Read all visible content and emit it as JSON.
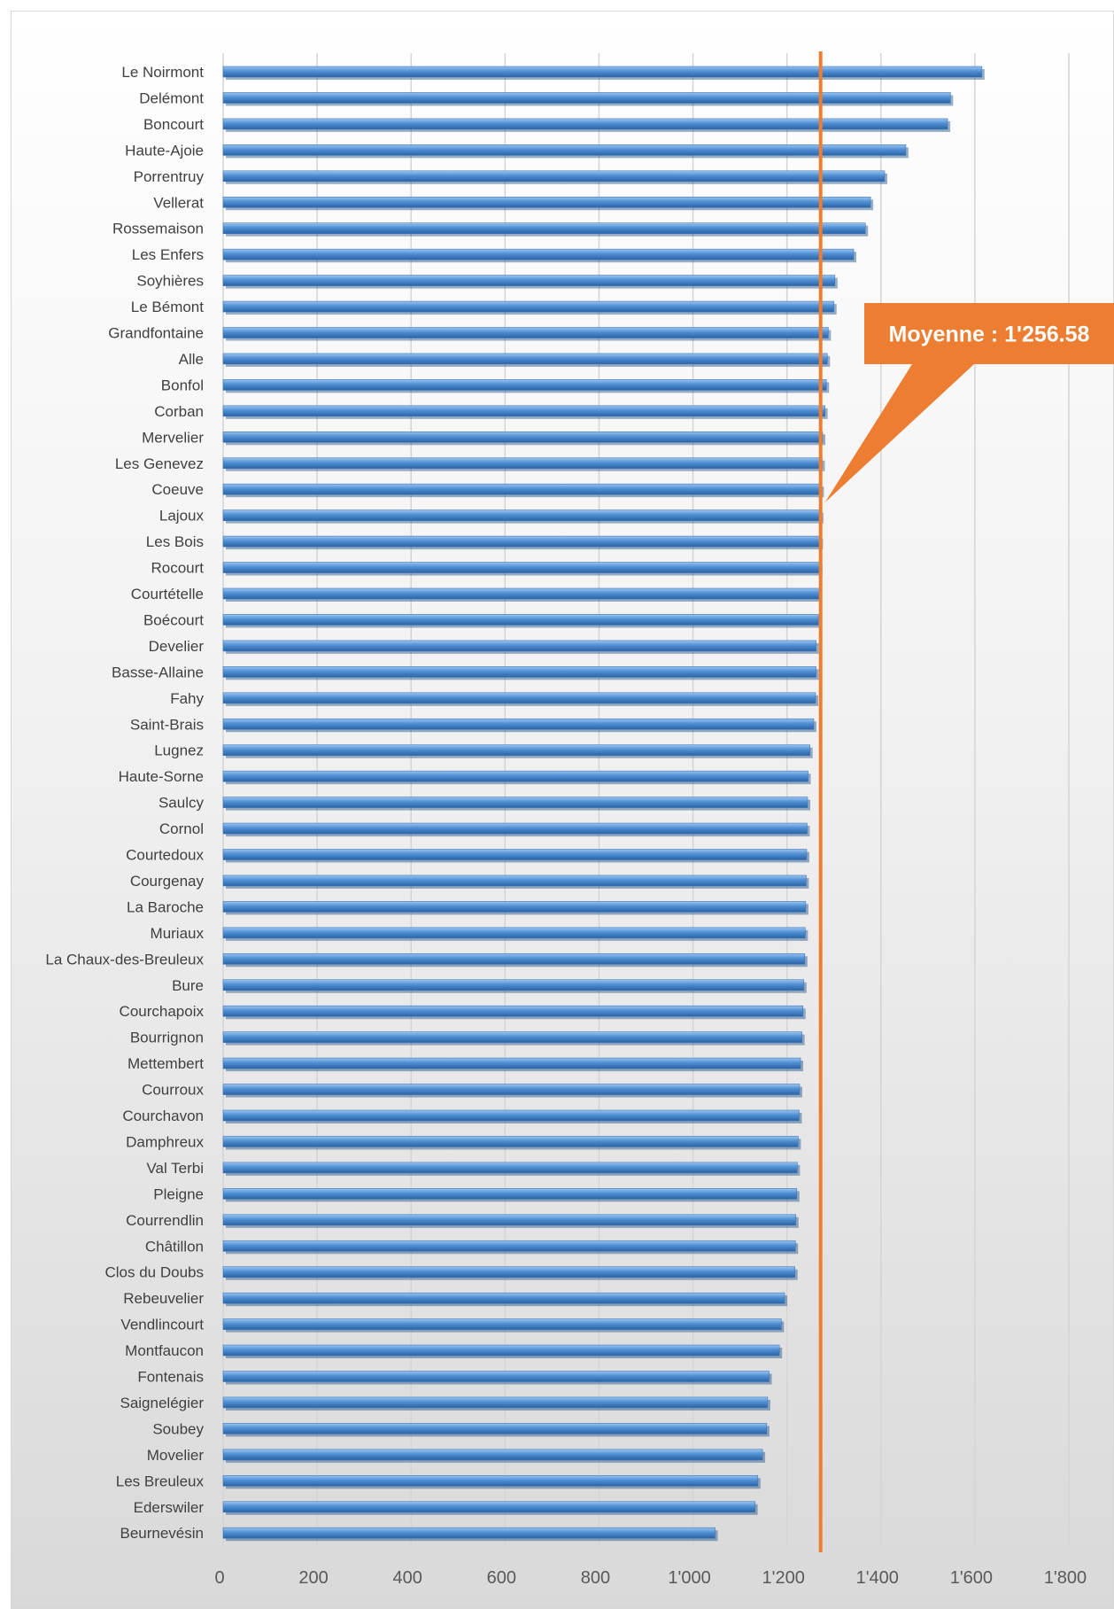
{
  "chart_data": {
    "type": "bar",
    "orientation": "horizontal",
    "categories": [
      "Le Noirmont",
      "Delémont",
      "Boncourt",
      "Haute-Ajoie",
      "Porrentruy",
      "Vellerat",
      "Rossemaison",
      "Les Enfers",
      "Soyhières",
      "Le Bémont",
      "Grandfontaine",
      "Alle",
      "Bonfol",
      "Corban",
      "Mervelier",
      "Les Genevez",
      "Coeuve",
      "Lajoux",
      "Les Bois",
      "Rocourt",
      "Courtételle",
      "Boécourt",
      "Develier",
      "Basse-Allaine",
      "Fahy",
      "Saint-Brais",
      "Lugnez",
      "Haute-Sorne",
      "Saulcy",
      "Cornol",
      "Courtedoux",
      "Courgenay",
      "La Baroche",
      "Muriaux",
      "La Chaux-des-Breuleux",
      "Bure",
      "Courchapoix",
      "Bourrignon",
      "Mettembert",
      "Courroux",
      "Courchavon",
      "Damphreux",
      "Val Terbi",
      "Pleigne",
      "Courrendlin",
      "Châtillon",
      "Clos du Doubs",
      "Rebeuvelier",
      "Vendlincourt",
      "Montfaucon",
      "Fontenais",
      "Saignelégier",
      "Soubey",
      "Movelier",
      "Les Breuleux",
      "Ederswiler",
      "Beurnevésin"
    ],
    "values": [
      1615,
      1548,
      1542,
      1453,
      1408,
      1378,
      1367,
      1342,
      1302,
      1300,
      1288,
      1286,
      1284,
      1281,
      1276,
      1275,
      1273,
      1272,
      1271,
      1270,
      1269,
      1267,
      1262,
      1262,
      1261,
      1257,
      1249,
      1245,
      1244,
      1243,
      1242,
      1241,
      1240,
      1239,
      1238,
      1236,
      1234,
      1232,
      1229,
      1227,
      1226,
      1224,
      1222,
      1221,
      1219,
      1218,
      1217,
      1195,
      1188,
      1184,
      1162,
      1159,
      1157,
      1148,
      1138,
      1132,
      1047
    ],
    "xlim": [
      0,
      1800
    ],
    "x_ticks": [
      "0",
      "200",
      "400",
      "600",
      "800",
      "1'000",
      "1'200",
      "1'400",
      "1'600",
      "1'800"
    ],
    "x_tick_values": [
      0,
      200,
      400,
      600,
      800,
      1000,
      1200,
      1400,
      1600,
      1800
    ],
    "grid": true,
    "bar_color": "#4f8fd4",
    "average_line": {
      "value": 1256.58,
      "color": "#ed7d31"
    },
    "annotation": {
      "text": "Moyenne : 1'256.58",
      "color": "#ed7d31"
    }
  }
}
